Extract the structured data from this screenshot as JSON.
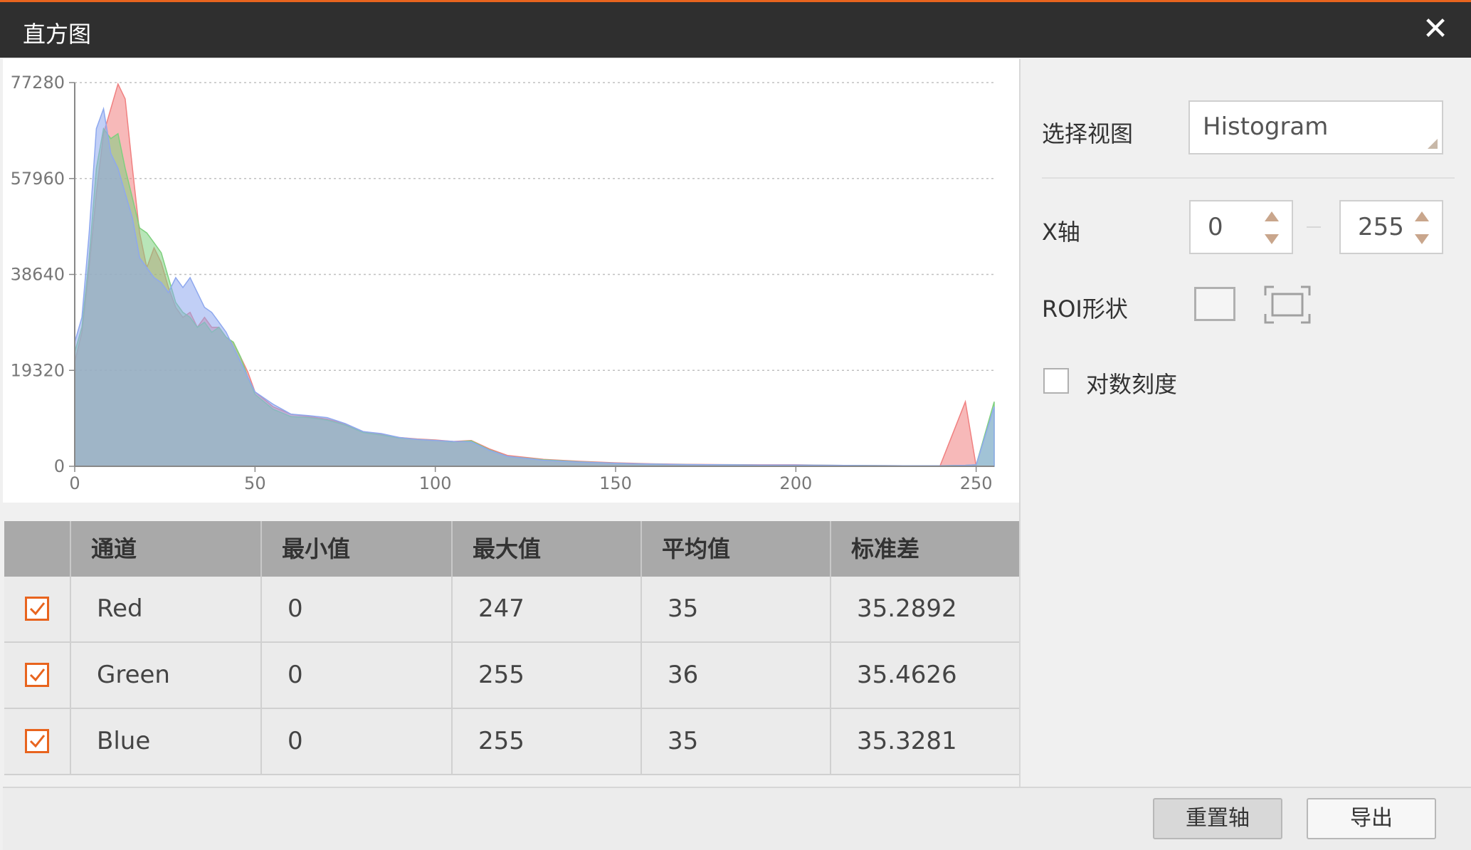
{
  "window": {
    "title": "直方图",
    "close_icon": "close-icon"
  },
  "chart": {
    "y_ticks": [
      "0",
      "19320",
      "38640",
      "57960",
      "77280"
    ],
    "x_ticks": [
      "0",
      "50",
      "100",
      "150",
      "200",
      "250"
    ]
  },
  "chart_data": {
    "type": "area",
    "ylim": [
      0,
      77280
    ],
    "xlim": [
      0,
      255
    ],
    "grid": true,
    "x": [
      0,
      2,
      4,
      6,
      8,
      10,
      12,
      14,
      16,
      18,
      20,
      22,
      24,
      26,
      28,
      30,
      32,
      34,
      36,
      38,
      40,
      42,
      44,
      46,
      48,
      50,
      55,
      60,
      65,
      70,
      75,
      80,
      85,
      90,
      95,
      100,
      105,
      110,
      115,
      120,
      130,
      140,
      150,
      160,
      170,
      180,
      190,
      200,
      210,
      220,
      230,
      240,
      247,
      250,
      255
    ],
    "series": [
      {
        "name": "Red",
        "color": "#f08080",
        "values": [
          21000,
          27000,
          40000,
          55000,
          67000,
          72000,
          77000,
          74000,
          60000,
          47000,
          40000,
          44000,
          41000,
          36000,
          32000,
          30000,
          31000,
          28000,
          30000,
          28000,
          28000,
          26000,
          25000,
          22000,
          19000,
          15000,
          12000,
          10500,
          10000,
          9500,
          8500,
          7000,
          6500,
          5800,
          5500,
          5300,
          5000,
          5200,
          3500,
          2200,
          1400,
          1000,
          700,
          500,
          400,
          350,
          300,
          300,
          200,
          150,
          100,
          100,
          13000,
          0,
          0
        ]
      },
      {
        "name": "Green",
        "color": "#7ed07e",
        "values": [
          23000,
          28000,
          42000,
          60000,
          68000,
          66000,
          67000,
          60000,
          54000,
          48000,
          47000,
          45000,
          43000,
          38000,
          33000,
          31000,
          30000,
          28000,
          29000,
          27000,
          28000,
          26000,
          25000,
          22000,
          18000,
          14500,
          11500,
          10000,
          9800,
          9300,
          8300,
          6800,
          6300,
          5700,
          5400,
          5200,
          4900,
          5100,
          3300,
          2000,
          1300,
          900,
          600,
          450,
          350,
          300,
          250,
          250,
          200,
          150,
          100,
          100,
          200,
          300,
          13000
        ]
      },
      {
        "name": "Blue",
        "color": "#8ea8ee",
        "values": [
          25000,
          30000,
          47000,
          68000,
          72000,
          63000,
          60000,
          55000,
          50000,
          42000,
          40000,
          38000,
          37000,
          35000,
          38000,
          36000,
          38000,
          35000,
          32000,
          31000,
          29000,
          27000,
          24000,
          21000,
          18000,
          15000,
          12500,
          10500,
          10200,
          9800,
          8600,
          7000,
          6600,
          5800,
          5400,
          5200,
          5000,
          4900,
          3200,
          2000,
          1200,
          850,
          600,
          450,
          350,
          300,
          250,
          250,
          200,
          150,
          100,
          100,
          200,
          300,
          12000
        ]
      }
    ]
  },
  "table": {
    "headers": [
      "通道",
      "最小值",
      "最大值",
      "平均值",
      "标准差"
    ],
    "rows": [
      {
        "channel": "Red",
        "min": "0",
        "max": "247",
        "mean": "35",
        "std": "35.2892"
      },
      {
        "channel": "Green",
        "min": "0",
        "max": "255",
        "mean": "36",
        "std": "35.4626"
      },
      {
        "channel": "Blue",
        "min": "0",
        "max": "255",
        "mean": "35",
        "std": "35.3281"
      }
    ]
  },
  "panel": {
    "select_view_label": "选择视图",
    "select_view_value": "Histogram",
    "x_axis_label": "X轴",
    "x_min": "0",
    "x_max": "255",
    "roi_label": "ROI形状",
    "log_scale_label": "对数刻度"
  },
  "footer": {
    "reset_axis": "重置轴",
    "export": "导出"
  },
  "colors": {
    "accent": "#e8641e",
    "titlebar": "#2f2f2f"
  }
}
